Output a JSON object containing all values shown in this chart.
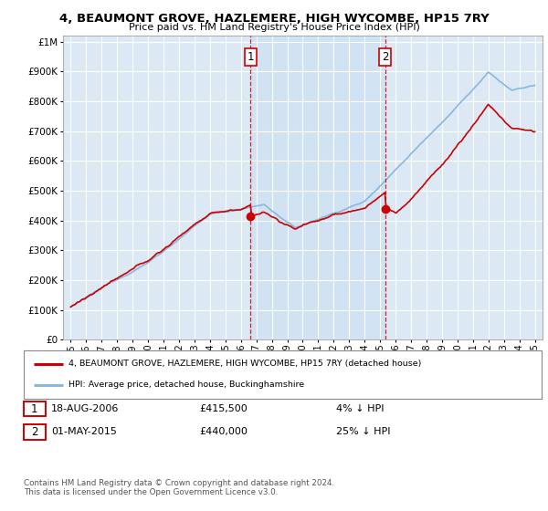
{
  "title": "4, BEAUMONT GROVE, HAZLEMERE, HIGH WYCOMBE, HP15 7RY",
  "subtitle": "Price paid vs. HM Land Registry's House Price Index (HPI)",
  "ytick_vals": [
    0,
    100000,
    200000,
    300000,
    400000,
    500000,
    600000,
    700000,
    800000,
    900000,
    1000000
  ],
  "ylim": [
    0,
    1020000
  ],
  "xlim_start": 1994.5,
  "xlim_end": 2025.5,
  "background_color": "#dce9f5",
  "grid_color": "#ffffff",
  "red_color": "#cc0000",
  "blue_color": "#88b8e0",
  "shade_color": "#c8dcf0",
  "purchase1_x": 2006.63,
  "purchase1_y": 415500,
  "purchase1_label": "1",
  "purchase1_date": "18-AUG-2006",
  "purchase1_price": "£415,500",
  "purchase1_hpi": "4% ↓ HPI",
  "purchase2_x": 2015.33,
  "purchase2_y": 440000,
  "purchase2_label": "2",
  "purchase2_date": "01-MAY-2015",
  "purchase2_price": "£440,000",
  "purchase2_hpi": "25% ↓ HPI",
  "legend_line1": "4, BEAUMONT GROVE, HAZLEMERE, HIGH WYCOMBE, HP15 7RY (detached house)",
  "legend_line2": "HPI: Average price, detached house, Buckinghamshire",
  "footer": "Contains HM Land Registry data © Crown copyright and database right 2024.\nThis data is licensed under the Open Government Licence v3.0."
}
